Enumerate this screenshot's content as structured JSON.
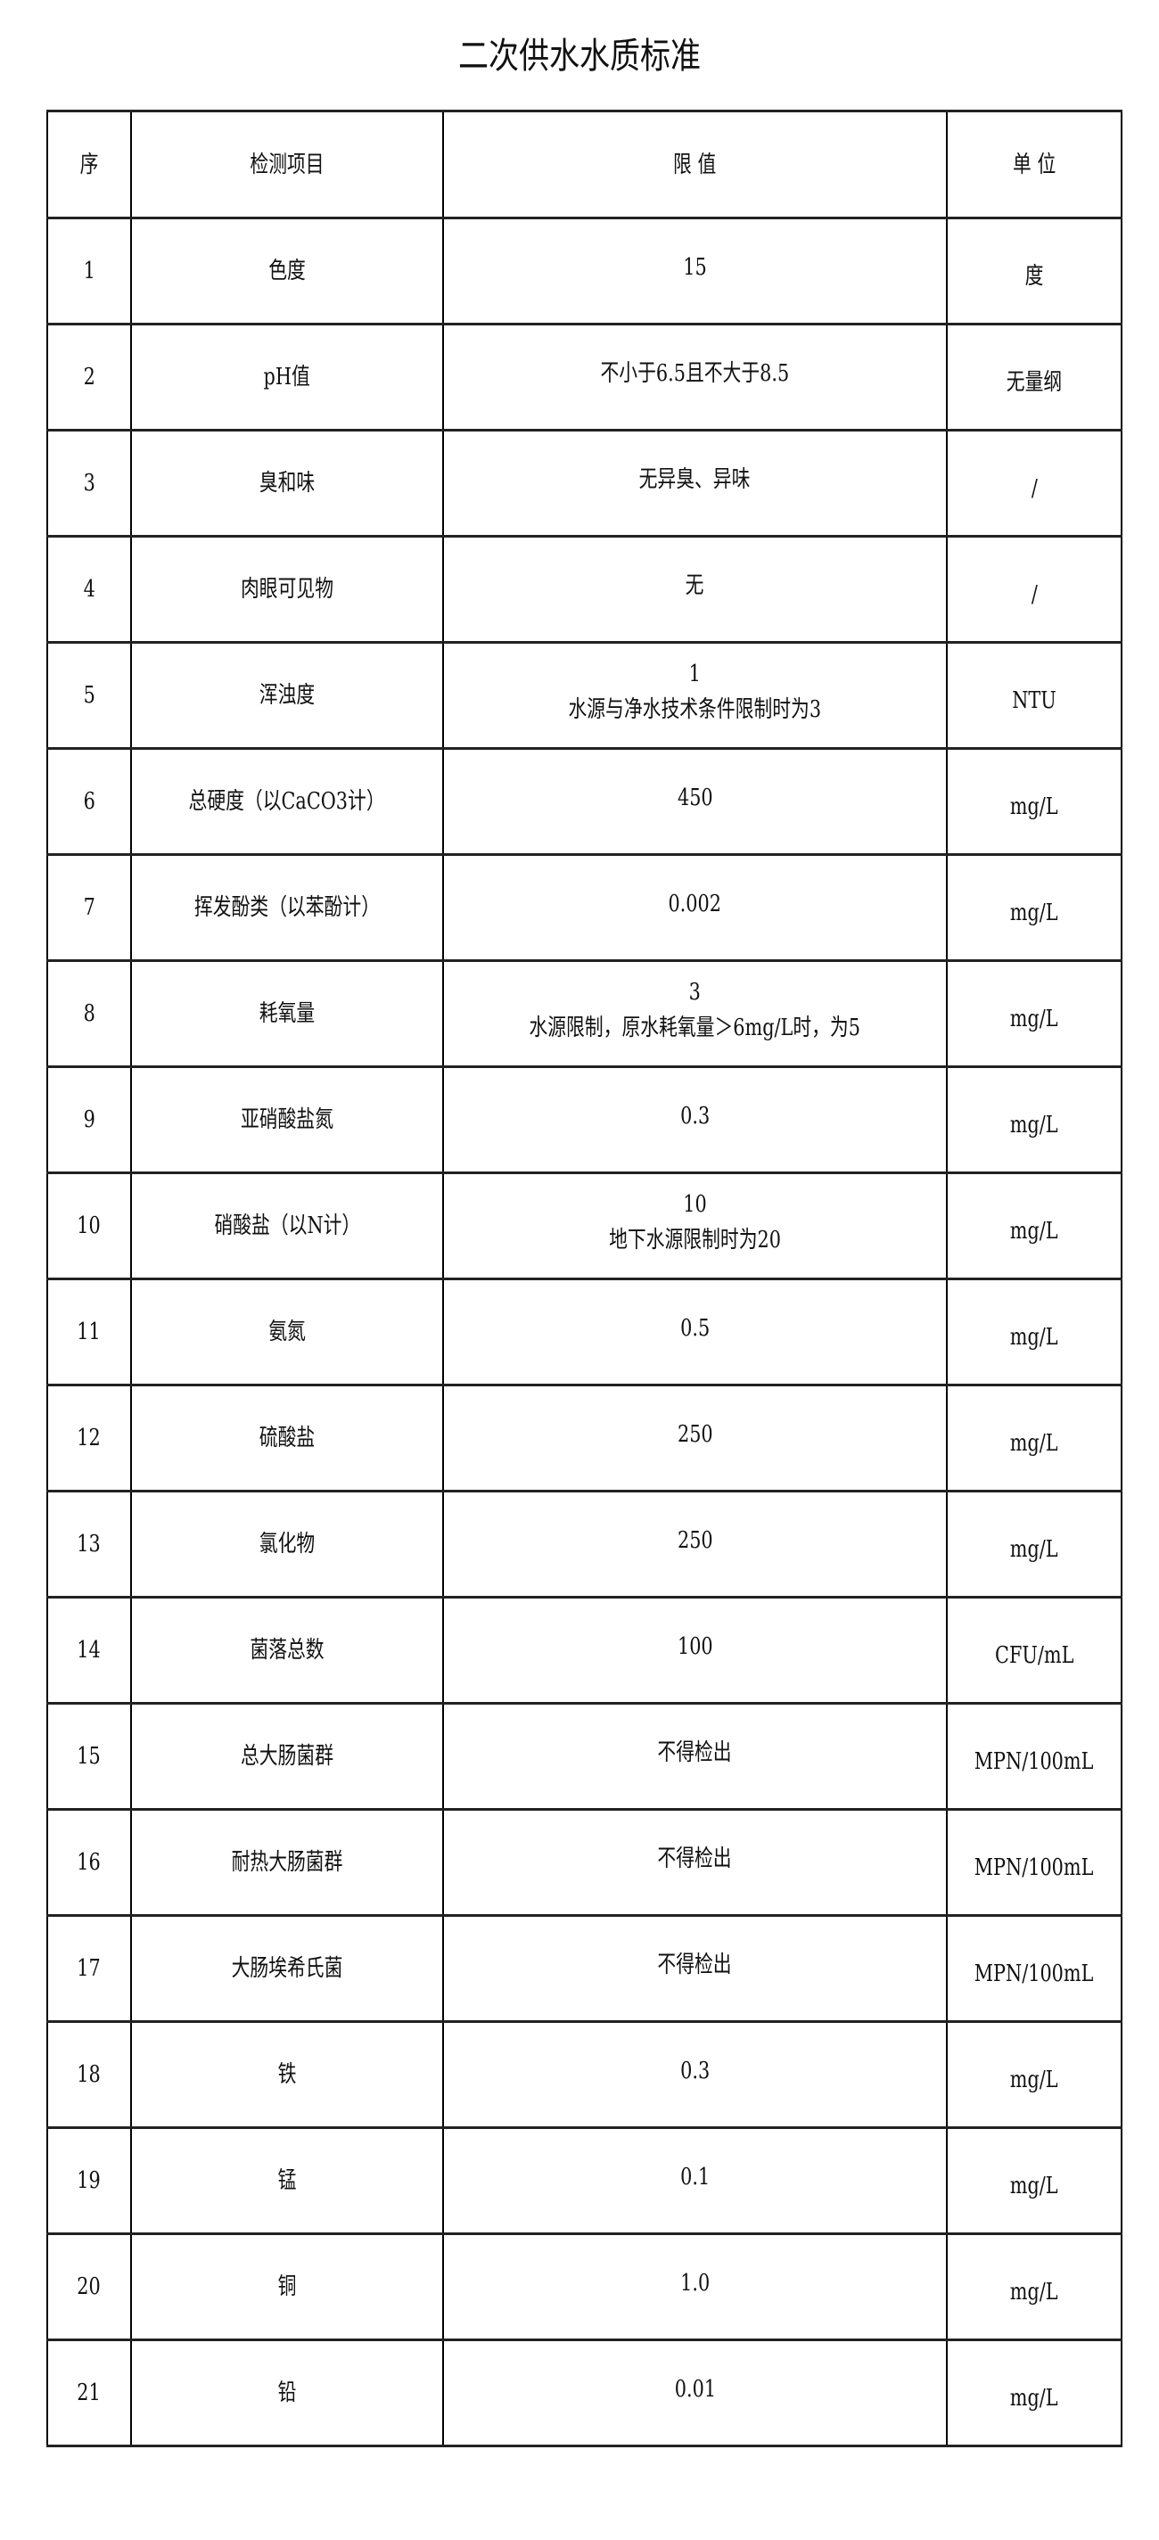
{
  "title": "二次供水水质标准",
  "headers": {
    "no": "序",
    "item": "检测项目",
    "limit": "限 值",
    "unit": "单 位"
  },
  "rows": [
    {
      "no": "1",
      "item": "色度",
      "limit": [
        "15"
      ],
      "unit": "度"
    },
    {
      "no": "2",
      "item": "pH值",
      "limit": [
        "不小于6.5且不大于8.5"
      ],
      "unit": "无量纲"
    },
    {
      "no": "3",
      "item": "臭和味",
      "limit": [
        "无异臭、异味"
      ],
      "unit": "/"
    },
    {
      "no": "4",
      "item": "肉眼可见物",
      "limit": [
        "无"
      ],
      "unit": "/"
    },
    {
      "no": "5",
      "item": "浑浊度",
      "limit": [
        "1",
        "水源与净水技术条件限制时为3"
      ],
      "unit": "NTU"
    },
    {
      "no": "6",
      "item": "总硬度（以CaCO3计）",
      "limit": [
        "450"
      ],
      "unit": "mg/L"
    },
    {
      "no": "7",
      "item": "挥发酚类（以苯酚计）",
      "limit": [
        "0.002"
      ],
      "unit": "mg/L"
    },
    {
      "no": "8",
      "item": "耗氧量",
      "limit": [
        "3",
        "水源限制，原水耗氧量＞6mg/L时，为5"
      ],
      "unit": "mg/L"
    },
    {
      "no": "9",
      "item": "亚硝酸盐氮",
      "limit": [
        "0.3"
      ],
      "unit": "mg/L"
    },
    {
      "no": "10",
      "item": "硝酸盐（以N计）",
      "limit": [
        "10",
        "地下水源限制时为20"
      ],
      "unit": "mg/L"
    },
    {
      "no": "11",
      "item": "氨氮",
      "limit": [
        "0.5"
      ],
      "unit": "mg/L"
    },
    {
      "no": "12",
      "item": "硫酸盐",
      "limit": [
        "250"
      ],
      "unit": "mg/L"
    },
    {
      "no": "13",
      "item": "氯化物",
      "limit": [
        "250"
      ],
      "unit": "mg/L"
    },
    {
      "no": "14",
      "item": "菌落总数",
      "limit": [
        "100"
      ],
      "unit": "CFU/mL"
    },
    {
      "no": "15",
      "item": "总大肠菌群",
      "limit": [
        "不得检出"
      ],
      "unit": "MPN/100mL"
    },
    {
      "no": "16",
      "item": "耐热大肠菌群",
      "limit": [
        "不得检出"
      ],
      "unit": "MPN/100mL"
    },
    {
      "no": "17",
      "item": "大肠埃希氏菌",
      "limit": [
        "不得检出"
      ],
      "unit": "MPN/100mL"
    },
    {
      "no": "18",
      "item": "铁",
      "limit": [
        "0.3"
      ],
      "unit": "mg/L"
    },
    {
      "no": "19",
      "item": "锰",
      "limit": [
        "0.1"
      ],
      "unit": "mg/L"
    },
    {
      "no": "20",
      "item": "铜",
      "limit": [
        "1.0"
      ],
      "unit": "mg/L"
    },
    {
      "no": "21",
      "item": "铅",
      "limit": [
        "0.01"
      ],
      "unit": "mg/L"
    }
  ]
}
